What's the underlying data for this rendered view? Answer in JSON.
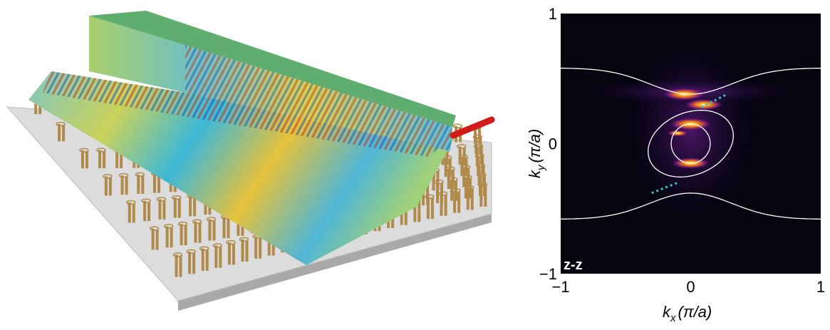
{
  "chart_data": {
    "type": "heatmap",
    "colormap": "inferno",
    "background_color": "#05040f",
    "contour_color": "#ffffff",
    "dotted_line_color": "#2ec4c4",
    "annotation": "z-z",
    "xlabel_main": "k",
    "xlabel_sub": "x",
    "xlabel_unit": "(π/a)",
    "ylabel_main": "k",
    "ylabel_sub": "y",
    "ylabel_unit": "(π/a)",
    "xlim": [
      -1,
      1
    ],
    "ylim": [
      -1,
      1
    ],
    "xticks": [
      "−1",
      "0",
      "1"
    ],
    "yticks": [
      "−1",
      "0",
      "1"
    ],
    "grid": false,
    "contours": {
      "outer_edge_ky": 0.58,
      "outer_center_ky": 0.38,
      "ellipse": {
        "center": [
          0.0,
          0.0
        ],
        "semi_axes": [
          0.34,
          0.24
        ],
        "rotation_deg": 22
      },
      "circle": {
        "center": [
          0.0,
          0.0
        ],
        "radius": 0.15
      }
    },
    "bright_regions": [
      {
        "kx": -0.05,
        "ky": 0.38,
        "intensity": 1.0
      },
      {
        "kx": 0.1,
        "ky": 0.3,
        "intensity": 0.9
      },
      {
        "kx": 0.0,
        "ky": 0.15,
        "intensity": 1.0
      },
      {
        "kx": 0.0,
        "ky": -0.15,
        "intensity": 0.9
      },
      {
        "kx": -0.1,
        "ky": 0.08,
        "intensity": 0.5
      }
    ],
    "dotted_lines": [
      {
        "from": [
          0.08,
          0.28
        ],
        "to": [
          0.28,
          0.38
        ]
      },
      {
        "from": [
          -0.3,
          -0.38
        ],
        "to": [
          -0.1,
          -0.3
        ]
      }
    ]
  },
  "scene": {
    "slab_color": "#d9d9d9",
    "pillar_color": "#b08a4a",
    "excitation_color": "#d11b1b"
  }
}
